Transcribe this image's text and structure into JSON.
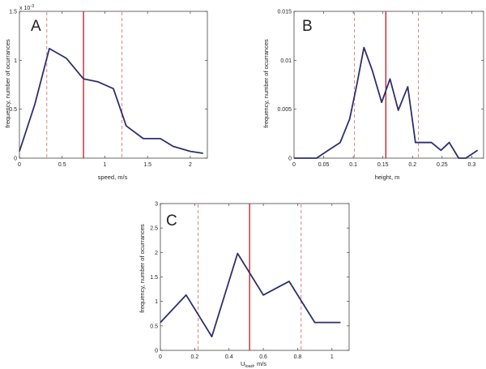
{
  "colors": {
    "series": "#2e2f6e",
    "mean_line": "#c0282d",
    "sd_line": "#e0807e",
    "axis": "#444444"
  },
  "chart_data": [
    {
      "type": "line",
      "panel_label": "A",
      "xlabel": "speed, m/s",
      "ylabel": "frequency, number of ocurrances",
      "y_exponent_label": "x 10",
      "y_exponent_power": "-3",
      "xlim": [
        0,
        2.2
      ],
      "ylim": [
        0,
        1.5
      ],
      "xticks": [
        0,
        0.5,
        1,
        1.5,
        2
      ],
      "xtick_labels": [
        "0",
        "0.5",
        "1",
        "1.5",
        "2"
      ],
      "yticks": [
        0,
        0.5,
        1,
        1.5
      ],
      "ytick_labels": [
        "0",
        "0.5",
        "1",
        "1.5"
      ],
      "x": [
        0,
        0.18,
        0.35,
        0.55,
        0.75,
        0.92,
        1.1,
        1.25,
        1.45,
        1.65,
        1.8,
        2.0,
        2.15
      ],
      "y": [
        0.07,
        0.55,
        1.12,
        1.02,
        0.81,
        0.78,
        0.71,
        0.33,
        0.2,
        0.2,
        0.12,
        0.07,
        0.05
      ],
      "mean_line": 0.75,
      "sd_lines": [
        0.32,
        1.2
      ]
    },
    {
      "type": "line",
      "panel_label": "B",
      "xlabel": "height, m",
      "ylabel": "frequency, number of ocurrances",
      "xlim": [
        0,
        0.32
      ],
      "ylim": [
        0,
        0.015
      ],
      "xticks": [
        0,
        0.05,
        0.1,
        0.15,
        0.2,
        0.25,
        0.3
      ],
      "xtick_labels": [
        "0",
        "0.05",
        "0.1",
        "0.15",
        "0.2",
        "0.25",
        "0.3"
      ],
      "yticks": [
        0,
        0.005,
        0.01,
        0.015
      ],
      "ytick_labels": [
        "0",
        "0.005",
        "0.01",
        "0.015"
      ],
      "x": [
        0,
        0.018,
        0.038,
        0.058,
        0.078,
        0.094,
        0.106,
        0.118,
        0.132,
        0.148,
        0.162,
        0.176,
        0.192,
        0.205,
        0.218,
        0.232,
        0.248,
        0.262,
        0.278,
        0.29,
        0.31
      ],
      "y": [
        0,
        0,
        0,
        0.0008,
        0.0016,
        0.004,
        0.0075,
        0.0113,
        0.009,
        0.0057,
        0.0081,
        0.0049,
        0.0073,
        0.0016,
        0.0016,
        0.0016,
        0.0008,
        0.0016,
        0,
        0,
        0.0008
      ],
      "mean_line": 0.155,
      "sd_lines": [
        0.102,
        0.21
      ]
    },
    {
      "type": "line",
      "panel_label": "C",
      "xlabel_main": "U",
      "xlabel_sub": "load",
      "xlabel_suffix": ", m/s",
      "ylabel": "frequency, number of ocurrances",
      "xlim": [
        0,
        1.1
      ],
      "ylim": [
        0,
        3
      ],
      "xticks": [
        0,
        0.2,
        0.4,
        0.6,
        0.8,
        1
      ],
      "xtick_labels": [
        "0",
        "0.2",
        "0.4",
        "0.6",
        "0.8",
        "1"
      ],
      "yticks": [
        0,
        0.5,
        1,
        1.5,
        2,
        2.5,
        3
      ],
      "ytick_labels": [
        "0",
        "0.5",
        "1",
        "1.5",
        "2",
        "2.5",
        "3"
      ],
      "x": [
        0,
        0.15,
        0.3,
        0.45,
        0.6,
        0.75,
        0.9,
        1.05
      ],
      "y": [
        0.57,
        1.13,
        0.28,
        1.98,
        1.13,
        1.41,
        0.57,
        0.57
      ],
      "mean_line": 0.52,
      "sd_lines": [
        0.22,
        0.82
      ]
    }
  ]
}
